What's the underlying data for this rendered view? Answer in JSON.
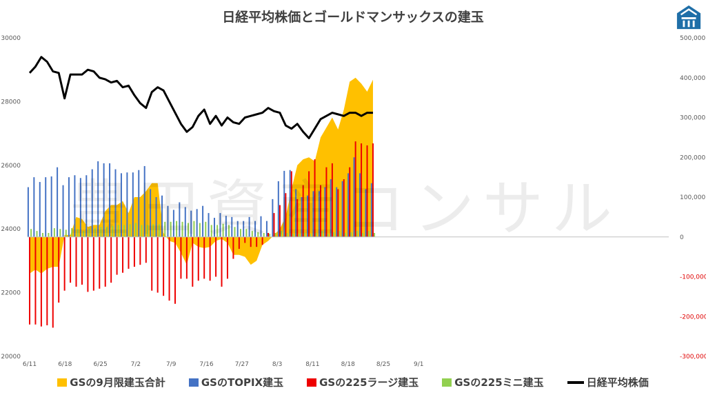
{
  "chart_data": {
    "type": "bar",
    "title": "日経平均株価とゴールドマンサックスの建玉",
    "watermark": "豊田資産コンサル",
    "x_ticks": [
      "6/11",
      "6/18",
      "6/25",
      "7/2",
      "7/9",
      "7/16",
      "7/27",
      "8/3",
      "8/11",
      "8/18",
      "8/25",
      "9/1"
    ],
    "y_left": {
      "ticks": [
        "30000",
        "28000",
        "26000",
        "24000",
        "22000",
        "20000"
      ],
      "ylim": [
        20000,
        30000
      ]
    },
    "y_right": {
      "ticks": [
        "500,000",
        "400,000",
        "300,000",
        "200,000",
        "100,000",
        "0",
        "-100,000",
        "-200,000",
        "-300,000"
      ],
      "ylim": [
        -300000,
        500000
      ]
    },
    "x": [
      "6/11",
      "6/12",
      "6/13",
      "6/14",
      "6/15",
      "6/16",
      "6/18",
      "6/19",
      "6/20",
      "6/21",
      "6/22",
      "6/25",
      "6/26",
      "6/27",
      "6/28",
      "6/29",
      "7/2",
      "7/3",
      "7/4",
      "7/5",
      "7/6",
      "7/9",
      "7/10",
      "7/11",
      "7/12",
      "7/13",
      "7/16",
      "7/17",
      "7/18",
      "7/19",
      "7/20",
      "7/23",
      "7/24",
      "7/25",
      "7/27",
      "7/28",
      "7/30",
      "7/31",
      "8/1",
      "8/2",
      "8/3",
      "8/6",
      "8/7",
      "8/8",
      "8/9",
      "8/10",
      "8/11",
      "8/13",
      "8/14",
      "8/15",
      "8/16",
      "8/17",
      "8/18",
      "8/20",
      "8/21",
      "8/22",
      "8/23",
      "8/24",
      "8/25",
      "8/27"
    ],
    "series": [
      {
        "name": "GSの9月限建玉合計",
        "color": "#ffc000",
        "type": "area",
        "values": [
          -92000,
          -82000,
          -92000,
          -80000,
          -75000,
          -75000,
          5000,
          5000,
          50000,
          45000,
          25000,
          30000,
          30000,
          65000,
          80000,
          80000,
          90000,
          60000,
          100000,
          100000,
          115000,
          135000,
          135000,
          10000,
          -10000,
          -15000,
          -40000,
          -70000,
          -15000,
          -25000,
          -28000,
          -25000,
          -10000,
          -5000,
          -15000,
          -45000,
          -45000,
          -50000,
          -70000,
          -60000,
          -20000,
          -10000,
          5000,
          20000,
          50000,
          120000,
          180000,
          195000,
          200000,
          190000,
          250000,
          275000,
          300000,
          270000,
          320000,
          390000,
          400000,
          385000,
          365000,
          395000
        ]
      },
      {
        "name": "GSのTOPIX建玉",
        "color": "#4472c4",
        "type": "bar",
        "values": [
          125000,
          150000,
          138000,
          150000,
          152000,
          175000,
          130000,
          150000,
          155000,
          148000,
          155000,
          170000,
          190000,
          185000,
          185000,
          170000,
          160000,
          162000,
          162000,
          168000,
          178000,
          120000,
          100000,
          104000,
          78000,
          68000,
          87000,
          75000,
          66000,
          70000,
          78000,
          60000,
          48000,
          60000,
          53000,
          50000,
          40000,
          40000,
          50000,
          40000,
          52000,
          40000,
          95000,
          140000,
          166000,
          168000,
          120000,
          100000,
          104000,
          115000,
          115000,
          125000,
          145000,
          125000,
          140000,
          160000,
          200000,
          160000,
          120000,
          135000
        ]
      },
      {
        "name": "GSの225ラージ建玉",
        "color": "#ee0000",
        "type": "bar",
        "values": [
          -220000,
          -220000,
          -225000,
          -222000,
          -228000,
          -165000,
          -135000,
          -115000,
          -125000,
          -120000,
          -138000,
          -135000,
          -130000,
          -125000,
          -115000,
          -95000,
          -90000,
          -80000,
          -75000,
          -70000,
          -65000,
          -135000,
          -140000,
          -148000,
          -160000,
          -168000,
          -105000,
          -105000,
          -125000,
          -110000,
          -105000,
          -110000,
          -100000,
          -125000,
          -105000,
          -55000,
          -30000,
          -15000,
          -25000,
          -25000,
          -20000,
          10000,
          60000,
          80000,
          110000,
          165000,
          95000,
          130000,
          165000,
          195000,
          130000,
          175000,
          185000,
          120000,
          145000,
          175000,
          240000,
          235000,
          230000,
          235000
        ]
      },
      {
        "name": "GSの225ミニ建玉",
        "color": "#92d050",
        "type": "bar",
        "values": [
          20000,
          15000,
          10000,
          10000,
          22000,
          20000,
          18000,
          22000,
          20000,
          15000,
          20000,
          22000,
          25000,
          25000,
          28000,
          30000,
          30000,
          32000,
          35000,
          30000,
          30000,
          32000,
          32000,
          38000,
          38000,
          40000,
          38000,
          35000,
          40000,
          35000,
          38000,
          30000,
          30000,
          33000,
          30000,
          25000,
          20000,
          20000,
          15000,
          12000,
          10000,
          8000,
          10000,
          15000,
          10000,
          8000,
          8000,
          10000,
          8000,
          10000,
          15000,
          8000,
          12000,
          15000,
          10000,
          12000,
          15000,
          10000,
          15000,
          10000
        ]
      },
      {
        "name": "日経平均株価",
        "color": "#000000",
        "type": "line",
        "axis": "left",
        "values": [
          28900,
          29100,
          29400,
          29250,
          28950,
          28900,
          28100,
          28850,
          28850,
          28850,
          29000,
          28950,
          28750,
          28700,
          28600,
          28650,
          28450,
          28500,
          28200,
          27950,
          27800,
          28300,
          28450,
          28350,
          28000,
          27650,
          27300,
          27050,
          27200,
          27550,
          27750,
          27300,
          27550,
          27250,
          27500,
          27350,
          27300,
          27500,
          27550,
          27600,
          27650,
          27800,
          27700,
          27650,
          27250,
          27150,
          27300,
          27050,
          26850,
          27150,
          27450,
          27550,
          27650,
          27600,
          27550,
          27650,
          27650,
          27550,
          27650,
          27650
        ]
      }
    ],
    "legend_position": "bottom",
    "grid": false
  },
  "logo": {
    "color": "#1f6fa8",
    "name": "house-logo-icon"
  }
}
